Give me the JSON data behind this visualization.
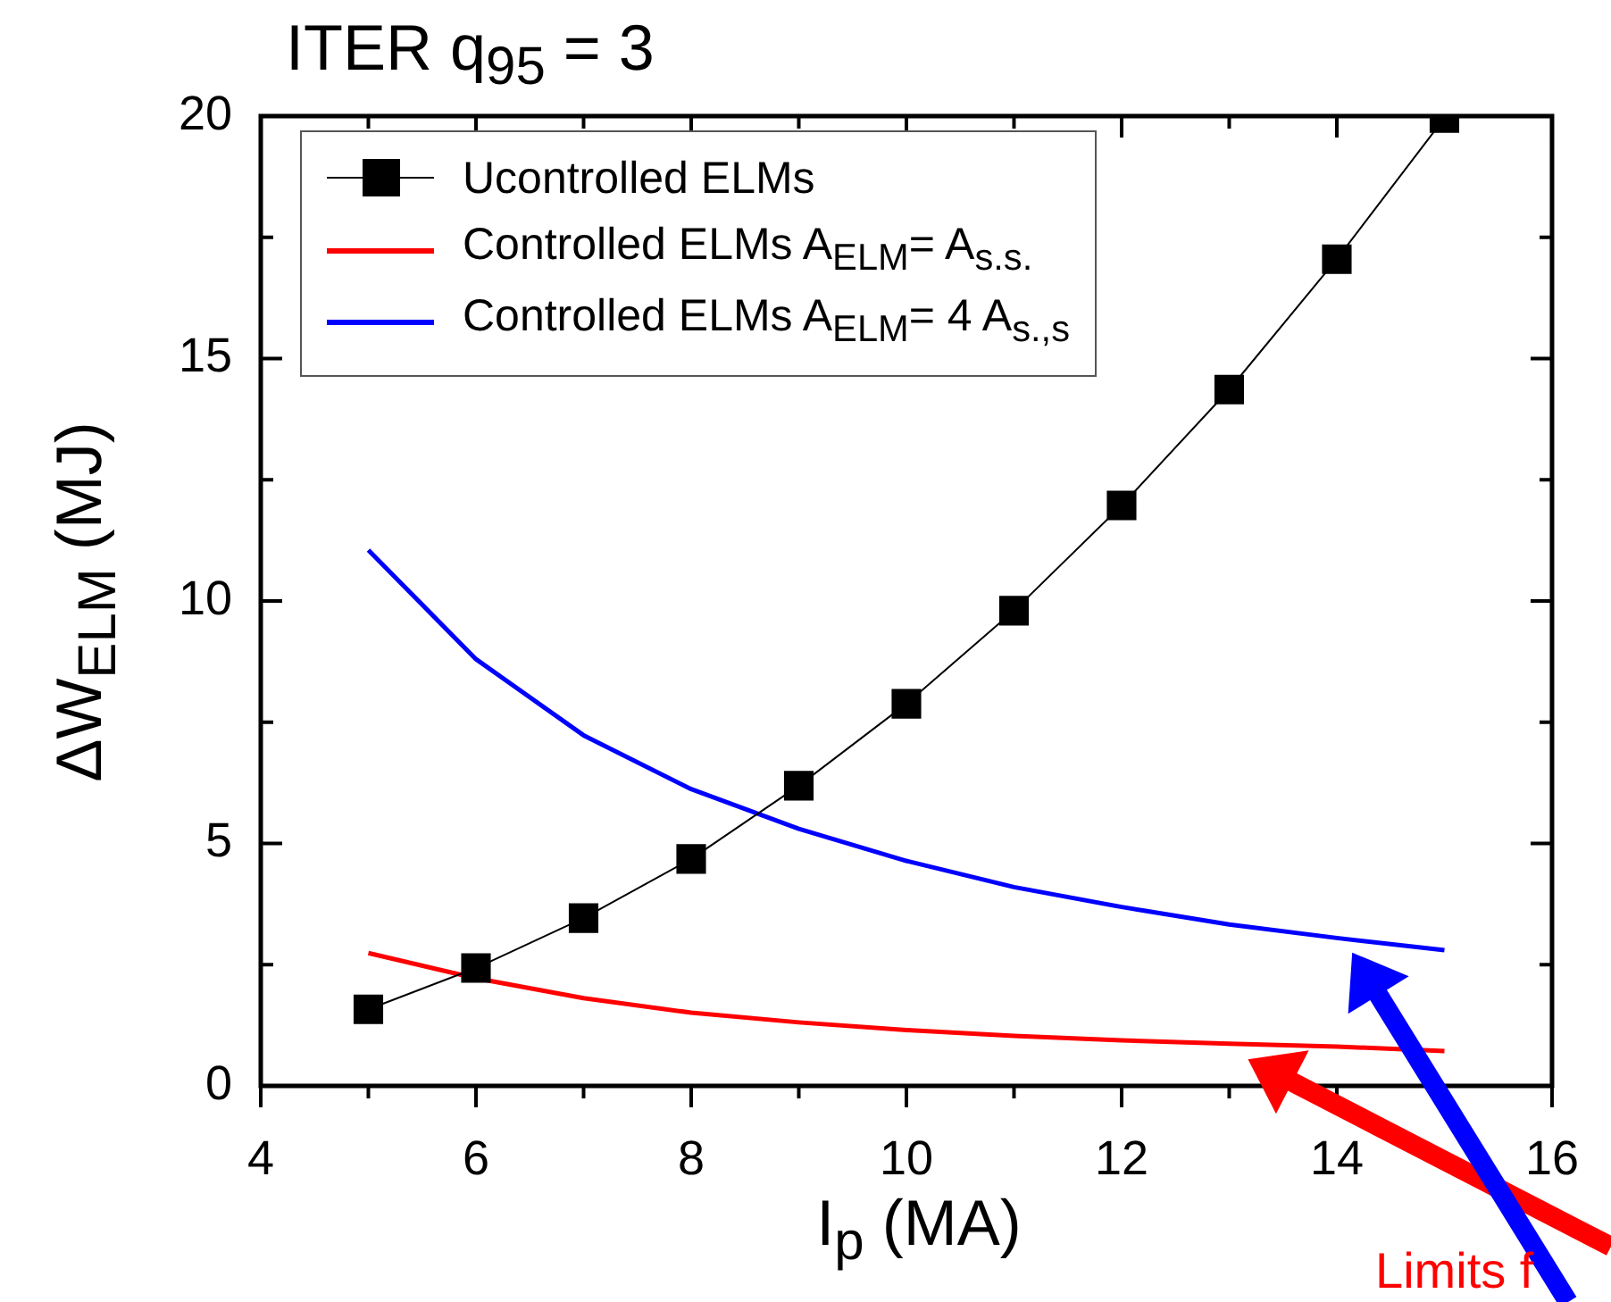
{
  "chart_data": {
    "type": "line",
    "title": "ITER q$_{95}$ = 3",
    "xlabel": "I$_{p}$ (MA)",
    "ylabel": "ΔW$_{ELM}$ (MJ)",
    "x": [
      5,
      6,
      7,
      8,
      9,
      10,
      11,
      12,
      13,
      14,
      15
    ],
    "xlim": [
      4,
      16
    ],
    "xticks": [
      4,
      6,
      8,
      10,
      12,
      14,
      16
    ],
    "ylim": [
      0,
      20
    ],
    "yticks": [
      0,
      5,
      10,
      15,
      20
    ],
    "legend": "top left",
    "annotations": [
      "Limits f"
    ],
    "series": [
      {
        "name": "Ucontrolled ELMs",
        "color": "#000000",
        "marker": "square",
        "values": [
          1.58,
          2.43,
          3.46,
          4.68,
          6.19,
          7.88,
          9.8,
          11.97,
          14.36,
          17.05,
          19.96
        ]
      },
      {
        "name": "Controlled ELMs A$_{ELM}$= A$_{s.s.}$",
        "color": "#ff0000",
        "marker": "none",
        "values": [
          2.74,
          2.22,
          1.81,
          1.51,
          1.31,
          1.15,
          1.03,
          0.94,
          0.87,
          0.81,
          0.72
        ]
      },
      {
        "name": "Controlled ELMs A$_{ELM}$= 4 A$_{s.,s}$",
        "color": "#0000ff",
        "marker": "none",
        "values": [
          11.05,
          8.8,
          7.23,
          6.12,
          5.3,
          4.64,
          4.1,
          3.69,
          3.33,
          3.05,
          2.8
        ]
      }
    ]
  }
}
